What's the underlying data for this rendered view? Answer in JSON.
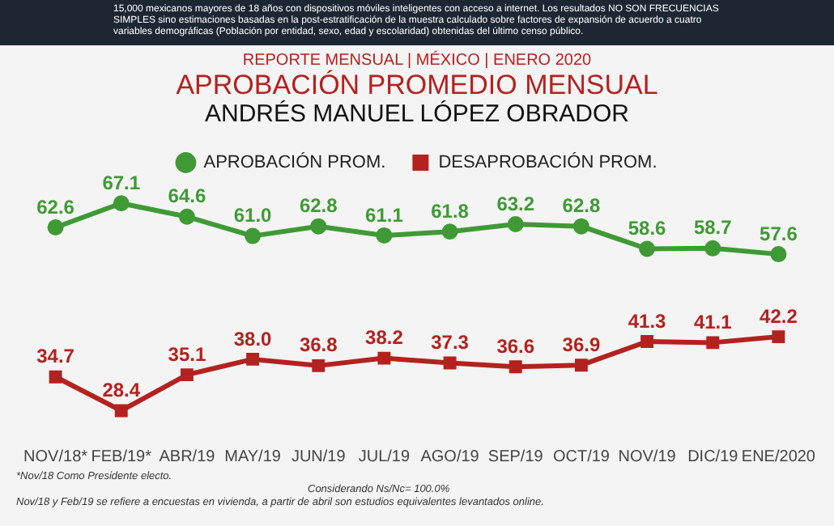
{
  "chart_data": {
    "type": "line",
    "title": "APROBACIÓN PROMEDIO MENSUAL",
    "subtitle": "ANDRÉS MANUEL LÓPEZ OBRADOR",
    "categories": [
      "NOV/18*",
      "FEB/19*",
      "ABR/19",
      "MAY/19",
      "JUN/19",
      "JUL/19",
      "AGO/19",
      "SEP/19",
      "OCT/19",
      "NOV/19",
      "DIC/19",
      "ENE/2020"
    ],
    "series": [
      {
        "name": "APROBACIÓN PROM.",
        "color": "#3f9a35",
        "marker": "circle",
        "values": [
          62.6,
          67.1,
          64.6,
          61.0,
          62.8,
          61.1,
          61.8,
          63.2,
          62.8,
          58.6,
          58.7,
          57.6
        ],
        "value_labels": [
          "62.6",
          "67.1",
          "64.6",
          "61.0",
          "62.8",
          "61.1",
          "61.8",
          "63.2",
          "62.8",
          "58.6",
          "58.7",
          "57.6"
        ]
      },
      {
        "name": "DESAPROBACIÓN PROM.",
        "color": "#b3221f",
        "marker": "square",
        "values": [
          34.7,
          28.4,
          35.1,
          38.0,
          36.8,
          38.2,
          37.3,
          36.6,
          36.9,
          41.3,
          41.1,
          42.2
        ],
        "value_labels": [
          "34.7",
          "28.4",
          "35.1",
          "38.0",
          "36.8",
          "38.2",
          "37.3",
          "36.6",
          "36.9",
          "41.3",
          "41.1",
          "42.2"
        ]
      }
    ],
    "tick_labels": "x",
    "grid": false,
    "legend": "top",
    "line_style": "solid",
    "annotations": [
      "15,000 mexicanos mayores de 18 años con dispositivos móviles inteligentes con acceso a internet. Los resultados NO SON FRECUENCIAS SIMPLES sino estimaciones basadas en la post-estratificación de la muestra calculado sobre factores de expansión de acuerdo a cuatro variables demográficas (Población por entidad, sexo, edad y escolaridad) obtenidas del último censo público.",
      "REPORTE MENSUAL | MÉXICO | ENERO 2020",
      "*Nov/18 Como Presidente electo.",
      "Considerando Ns/Nc= 100.0%",
      "Nov/18 y Feb/19 se refiere a encuestas en vivienda, a partir de abril son estudios equivalentes levantados online."
    ]
  }
}
